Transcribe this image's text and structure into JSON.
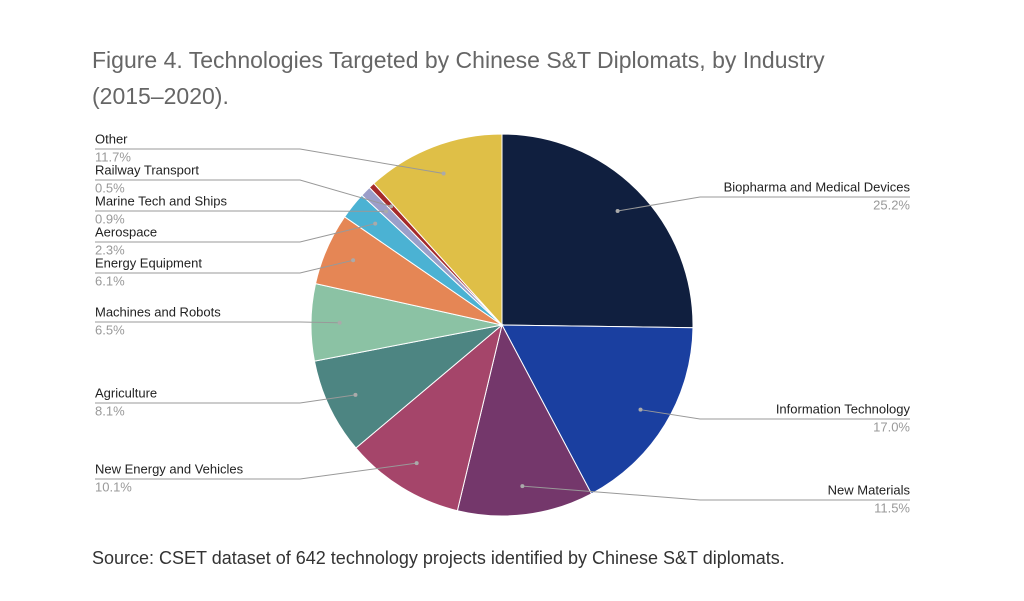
{
  "chart_data": {
    "type": "pie",
    "title": "Figure 4. Technologies Targeted by Chinese S&T Diplomats, by Industry (2015–2020).",
    "categories": [
      "Biopharma and Medical Devices",
      "Information Technology",
      "New Materials",
      "New Energy and Vehicles",
      "Agriculture",
      "Machines and Robots",
      "Energy Equipment",
      "Aerospace",
      "Marine Tech and Ships",
      "Railway Transport",
      "Other"
    ],
    "values": [
      25.2,
      17.0,
      11.5,
      10.1,
      8.1,
      6.5,
      6.1,
      2.3,
      0.9,
      0.5,
      11.7
    ],
    "value_labels": [
      "25.2%",
      "17.0%",
      "11.5%",
      "10.1%",
      "8.1%",
      "6.5%",
      "6.1%",
      "2.3%",
      "0.9%",
      "0.5%",
      "11.7%"
    ],
    "colors": [
      "#101f3f",
      "#1a3fa0",
      "#74376b",
      "#a5456a",
      "#4d8582",
      "#8bc2a4",
      "#e58655",
      "#4bb2d3",
      "#9b9ec9",
      "#a52a2a",
      "#dfbf47"
    ],
    "note": "Source: CSET dataset of 642 technology projects identified by Chinese S&T diplomats."
  }
}
